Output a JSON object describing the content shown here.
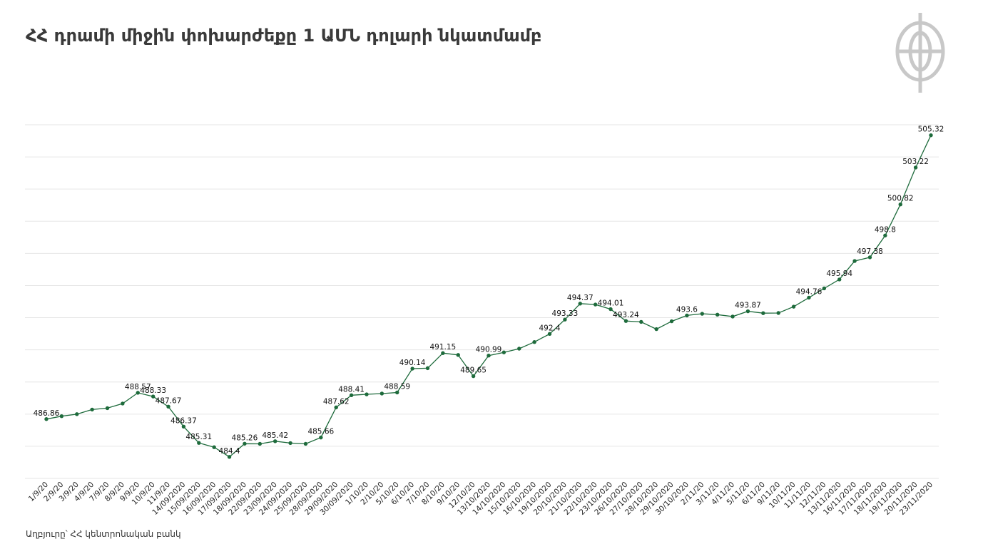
{
  "title": "ՀՀ դրամի միջին փոխարժեքը 1 ԱՄՆ դոլարի նկատմամբ",
  "source": "Աղբյուրը՝ ՀՀ կենտրոնական բանկ",
  "colors": {
    "line": "#1e6b3c",
    "grid": "#e6e6e6",
    "title": "#3a3a3a",
    "logo": "#c8c8c8"
  },
  "chart_data": {
    "type": "line",
    "grid": true,
    "ylim": [
      483,
      506
    ],
    "x": [
      "1/9/20",
      "2/9/20",
      "3/9/20",
      "4/9/20",
      "7/9/20",
      "8/9/20",
      "9/9/20",
      "10/9/20",
      "11/9/20",
      "14/09/2020",
      "15/09/2020",
      "16/09/2020",
      "17/09/2020",
      "18/09/2020",
      "22/09/2020",
      "23/09/2020",
      "24/09/2020",
      "25/09/2020",
      "28/09/2020",
      "29/09/2020",
      "30/09/2020",
      "1/10/20",
      "2/10/20",
      "5/10/20",
      "6/10/20",
      "7/10/20",
      "8/10/20",
      "9/10/20",
      "12/10/20",
      "13/10/2020",
      "14/10/2020",
      "15/10/2020",
      "16/10/2020",
      "19/10/2020",
      "20/10/2020",
      "21/10/2020",
      "22/10/2020",
      "23/10/2020",
      "26/10/2020",
      "27/10/2020",
      "28/10/2020",
      "29/10/2020",
      "30/10/2020",
      "2/11/20",
      "3/11/20",
      "4/11/20",
      "5/11/20",
      "6/11/20",
      "9/11/20",
      "10/11/20",
      "11/11/20",
      "12/11/20",
      "13/11/2020",
      "16/11/2020",
      "17/11/2020",
      "18/11/2020",
      "19/11/2020",
      "20/11/2020",
      "23/11/2020"
    ],
    "values": [
      486.86,
      487.05,
      487.18,
      487.48,
      487.57,
      487.87,
      488.57,
      488.33,
      487.67,
      486.37,
      485.31,
      485.03,
      484.4,
      485.26,
      485.25,
      485.42,
      485.3,
      485.25,
      485.66,
      487.62,
      488.41,
      488.47,
      488.52,
      488.59,
      490.14,
      490.17,
      491.15,
      491.03,
      489.65,
      490.99,
      491.2,
      491.44,
      491.87,
      492.4,
      493.33,
      494.37,
      494.31,
      494.01,
      493.24,
      493.18,
      492.71,
      493.22,
      493.6,
      493.71,
      493.65,
      493.53,
      493.87,
      493.75,
      493.76,
      494.17,
      494.76,
      495.36,
      495.94,
      497.14,
      497.38,
      498.8,
      500.82,
      503.22,
      505.32
    ],
    "labels": [
      {
        "i": 0,
        "text": "486.86"
      },
      {
        "i": 6,
        "text": "488.57"
      },
      {
        "i": 7,
        "text": "488.33"
      },
      {
        "i": 8,
        "text": "487.67"
      },
      {
        "i": 9,
        "text": "486.37"
      },
      {
        "i": 10,
        "text": "485.31"
      },
      {
        "i": 12,
        "text": "484.4"
      },
      {
        "i": 13,
        "text": "485.26"
      },
      {
        "i": 15,
        "text": "485.42"
      },
      {
        "i": 18,
        "text": "485.66"
      },
      {
        "i": 19,
        "text": "487.62"
      },
      {
        "i": 20,
        "text": "488.41"
      },
      {
        "i": 23,
        "text": "488.59"
      },
      {
        "i": 24,
        "text": "490.14"
      },
      {
        "i": 26,
        "text": "491.15"
      },
      {
        "i": 28,
        "text": "489.65"
      },
      {
        "i": 29,
        "text": "490.99"
      },
      {
        "i": 33,
        "text": "492.4"
      },
      {
        "i": 34,
        "text": "493.33"
      },
      {
        "i": 35,
        "text": "494.37"
      },
      {
        "i": 37,
        "text": "494.01"
      },
      {
        "i": 38,
        "text": "493.24"
      },
      {
        "i": 42,
        "text": "493.6"
      },
      {
        "i": 46,
        "text": "493.87"
      },
      {
        "i": 50,
        "text": "494.76"
      },
      {
        "i": 52,
        "text": "495.94"
      },
      {
        "i": 54,
        "text": "497.38"
      },
      {
        "i": 55,
        "text": "498.8"
      },
      {
        "i": 56,
        "text": "500.82"
      },
      {
        "i": 57,
        "text": "503.22"
      },
      {
        "i": 58,
        "text": "505.32"
      }
    ]
  }
}
